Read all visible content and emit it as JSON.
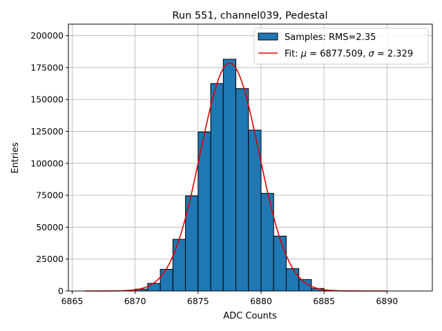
{
  "chart_data": {
    "type": "bar",
    "title": "Run 551, channel039, Pedestal",
    "xlabel": "ADC Counts",
    "ylabel": "Entries",
    "xlim": [
      6864.7,
      6893.6
    ],
    "ylim": [
      0,
      209000
    ],
    "xticks": [
      6865,
      6870,
      6875,
      6880,
      6885,
      6890
    ],
    "yticks": [
      0,
      25000,
      50000,
      75000,
      100000,
      125000,
      150000,
      175000,
      200000
    ],
    "grid": true,
    "legend_position": "top-right",
    "bar_color": "#1f77b4",
    "fit_color": "#e00000",
    "bins": [
      {
        "x0": 6870,
        "x1": 6871,
        "value": 1500
      },
      {
        "x0": 6871,
        "x1": 6872,
        "value": 6000
      },
      {
        "x0": 6872,
        "x1": 6873,
        "value": 17000
      },
      {
        "x0": 6873,
        "x1": 6874,
        "value": 40500
      },
      {
        "x0": 6874,
        "x1": 6875,
        "value": 74500
      },
      {
        "x0": 6875,
        "x1": 6876,
        "value": 124500
      },
      {
        "x0": 6876,
        "x1": 6877,
        "value": 162500
      },
      {
        "x0": 6877,
        "x1": 6878,
        "value": 181500
      },
      {
        "x0": 6878,
        "x1": 6879,
        "value": 158500
      },
      {
        "x0": 6879,
        "x1": 6880,
        "value": 126000
      },
      {
        "x0": 6880,
        "x1": 6881,
        "value": 76500
      },
      {
        "x0": 6881,
        "x1": 6882,
        "value": 43000
      },
      {
        "x0": 6882,
        "x1": 6883,
        "value": 17500
      },
      {
        "x0": 6883,
        "x1": 6884,
        "value": 9000
      },
      {
        "x0": 6884,
        "x1": 6885,
        "value": 2000
      },
      {
        "x0": 6885,
        "x1": 6886,
        "value": 400
      }
    ],
    "fit": {
      "mu": 6877.509,
      "sigma": 2.329,
      "amplitude": 178500,
      "x_range": [
        6866,
        6890
      ]
    },
    "legend": {
      "samples_label": "Samples: RMS=2.35",
      "fit_prefix": "Fit: ",
      "mu_symbol": "μ",
      "fit_mid": " = 6877.509, ",
      "sigma_symbol": "σ",
      "fit_suffix": " = 2.329"
    }
  }
}
